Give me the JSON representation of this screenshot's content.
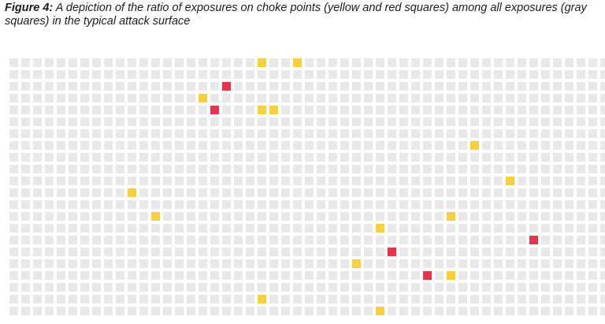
{
  "figure": {
    "label": "Figure 4:",
    "caption": "A depiction of the ratio of exposures on choke points (yellow and red squares) among all exposures (gray squares) in the typical attack surface"
  },
  "grid": {
    "columns": 51,
    "rows": 22,
    "colors": {
      "exposure": "#e8e8e8",
      "choke_yellow": "#f7cf3c",
      "choke_red": "#e6344a"
    },
    "highlights": [
      {
        "col": 21,
        "row": 0,
        "type": "yellow"
      },
      {
        "col": 24,
        "row": 0,
        "type": "yellow"
      },
      {
        "col": 18,
        "row": 2,
        "type": "red"
      },
      {
        "col": 16,
        "row": 3,
        "type": "yellow"
      },
      {
        "col": 17,
        "row": 4,
        "type": "red"
      },
      {
        "col": 21,
        "row": 4,
        "type": "yellow"
      },
      {
        "col": 22,
        "row": 4,
        "type": "yellow"
      },
      {
        "col": 39,
        "row": 7,
        "type": "yellow"
      },
      {
        "col": 42,
        "row": 10,
        "type": "yellow"
      },
      {
        "col": 10,
        "row": 11,
        "type": "yellow"
      },
      {
        "col": 12,
        "row": 13,
        "type": "yellow"
      },
      {
        "col": 37,
        "row": 13,
        "type": "yellow"
      },
      {
        "col": 31,
        "row": 14,
        "type": "yellow"
      },
      {
        "col": 44,
        "row": 15,
        "type": "red"
      },
      {
        "col": 32,
        "row": 16,
        "type": "red"
      },
      {
        "col": 29,
        "row": 17,
        "type": "yellow"
      },
      {
        "col": 35,
        "row": 18,
        "type": "red"
      },
      {
        "col": 37,
        "row": 18,
        "type": "yellow"
      },
      {
        "col": 21,
        "row": 20,
        "type": "yellow"
      },
      {
        "col": 31,
        "row": 21,
        "type": "yellow"
      }
    ]
  }
}
